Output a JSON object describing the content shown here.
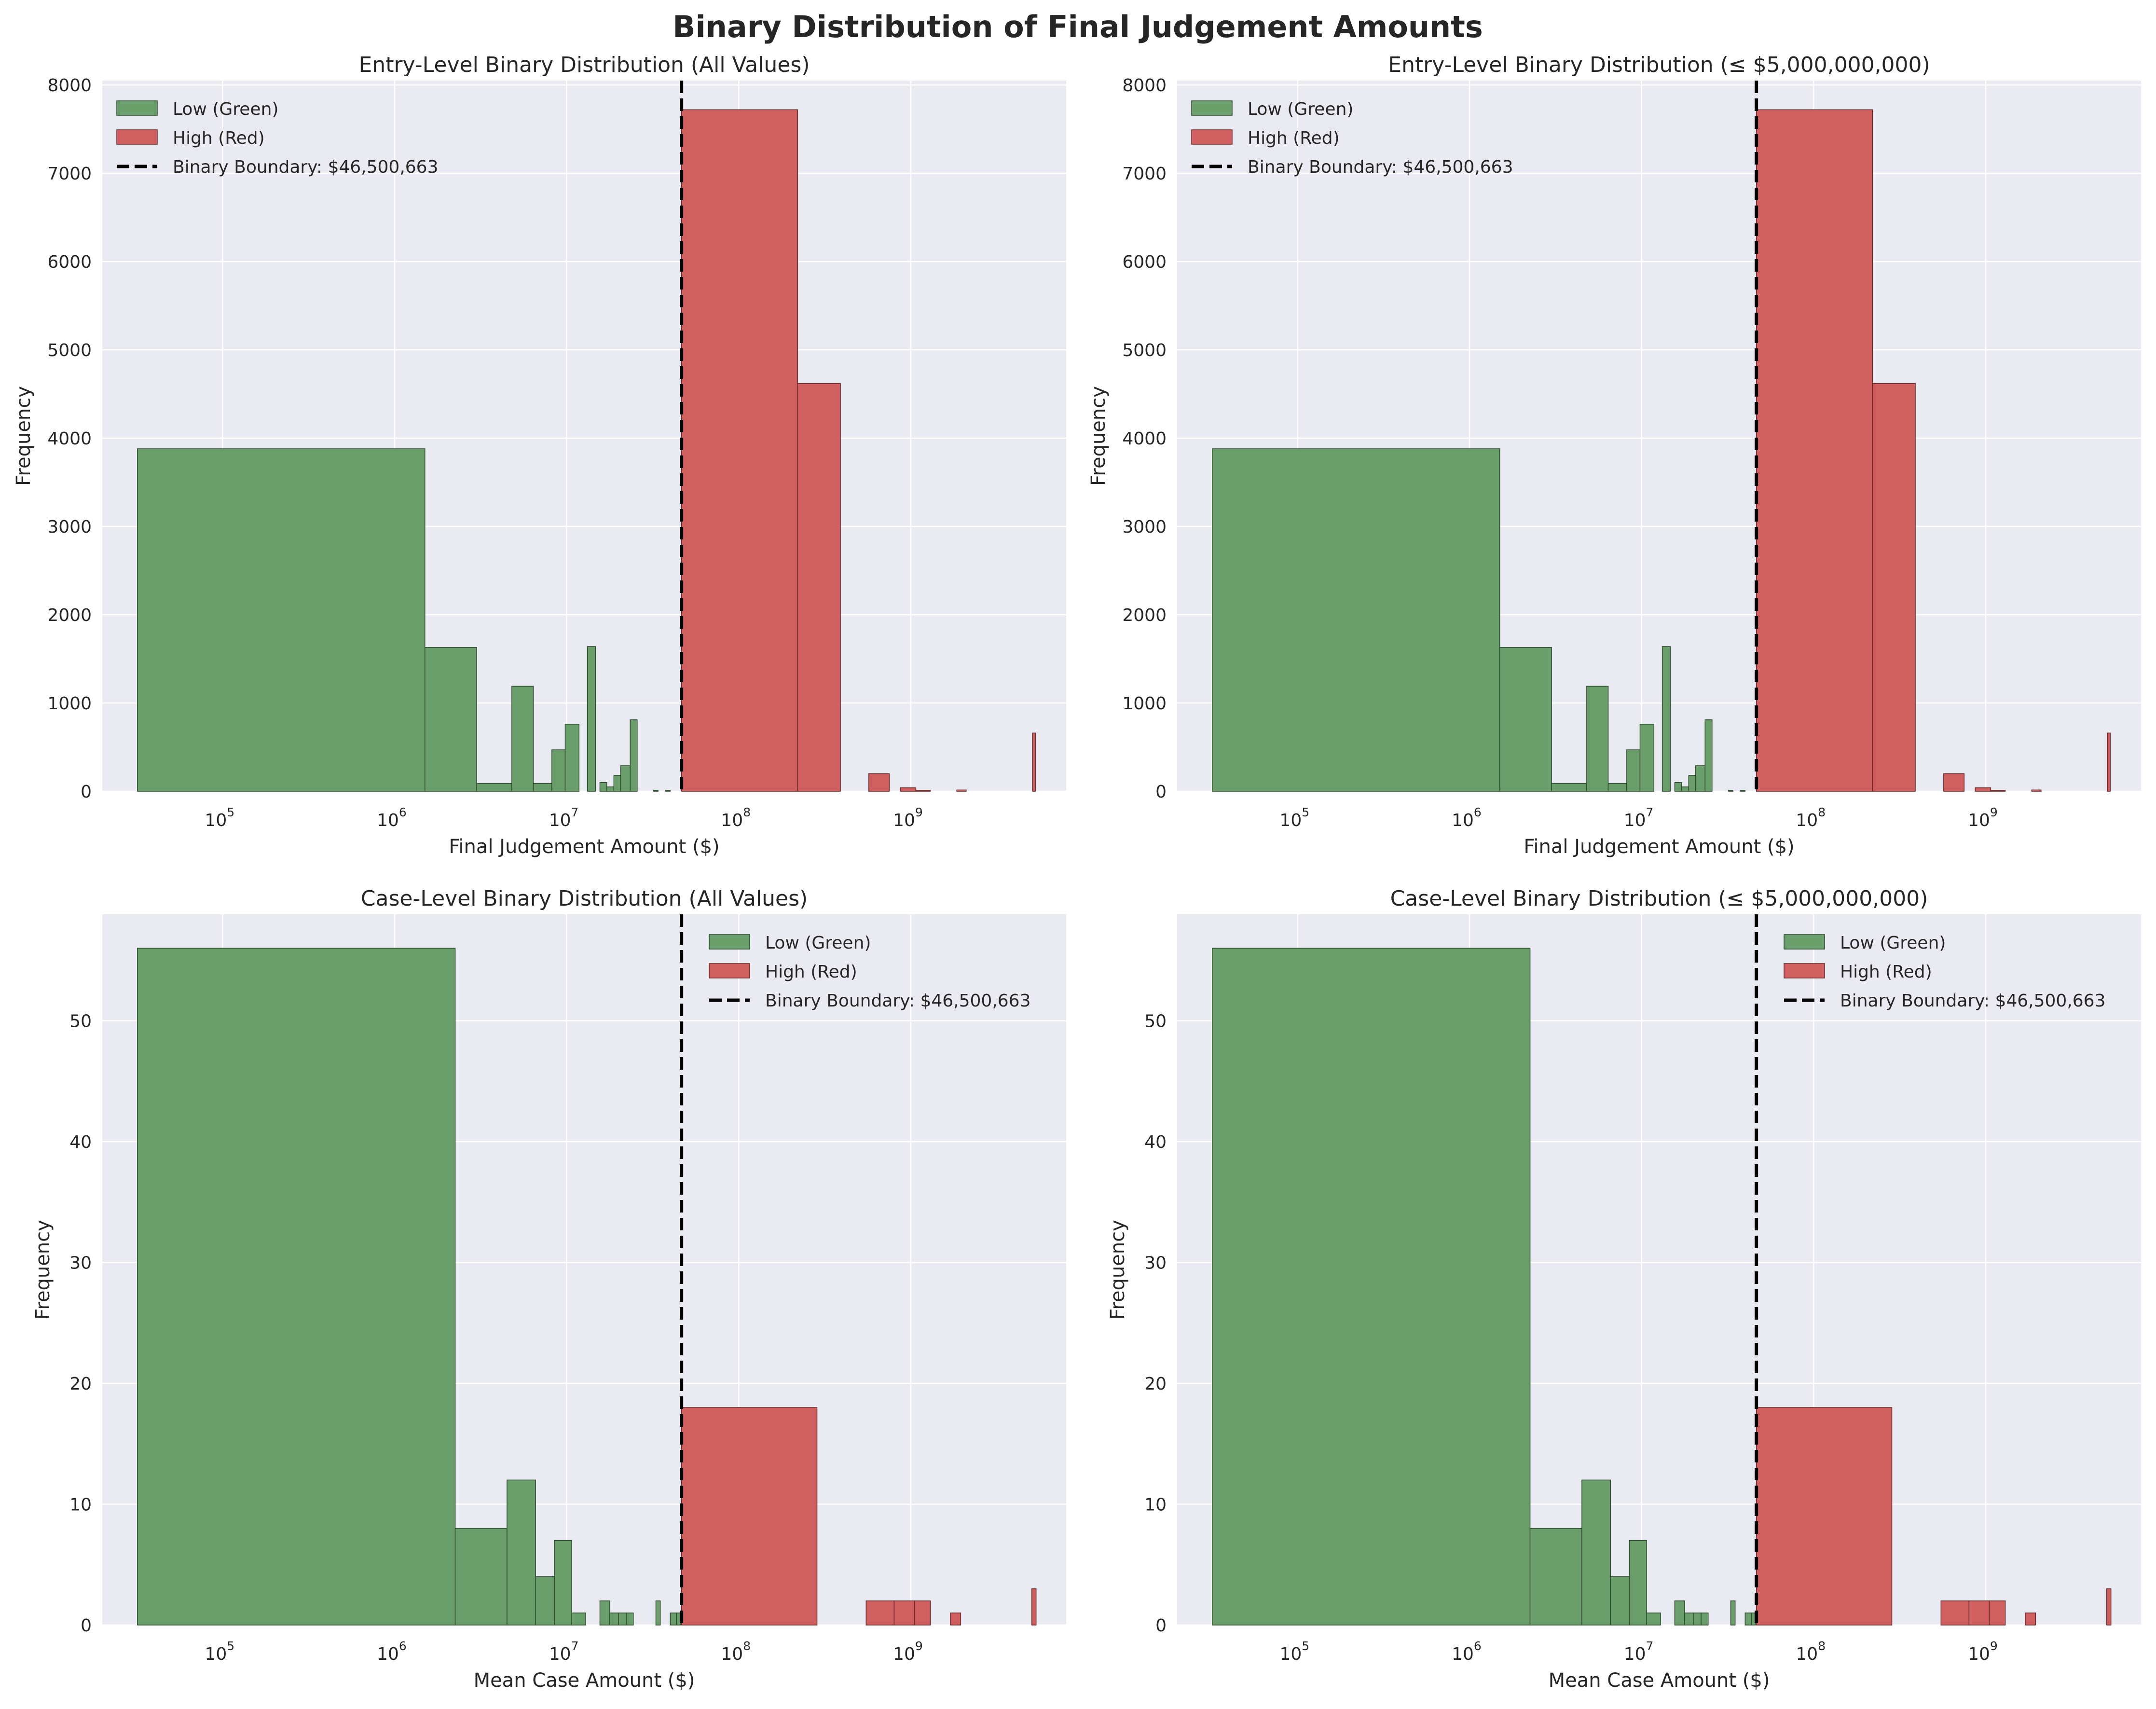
{
  "figure_title": "Binary Distribution of Final Judgement Amounts",
  "colors": {
    "low": "#6a9e6a",
    "low_edge": "#2f4a2f",
    "high": "#d06060",
    "high_edge": "#6a2a2a",
    "boundary": "#000000",
    "plot_bg": "#eaeaf2",
    "grid": "#ffffff"
  },
  "chart_data": [
    {
      "type": "bar",
      "title": "Entry-Level Binary Distribution (All Values)",
      "xlabel": "Final Judgement Amount ($)",
      "ylabel": "Frequency",
      "xscale": "log",
      "xlim": [
        20000,
        8000000000
      ],
      "ylim": [
        0,
        8050
      ],
      "yticks": [
        0,
        1000,
        2000,
        3000,
        4000,
        5000,
        6000,
        7000,
        8000
      ],
      "xticks": [
        {
          "value": 100000,
          "base": "10",
          "exp": "5"
        },
        {
          "value": 1000000,
          "base": "10",
          "exp": "6"
        },
        {
          "value": 10000000,
          "base": "10",
          "exp": "7"
        },
        {
          "value": 100000000,
          "base": "10",
          "exp": "8"
        },
        {
          "value": 1000000000,
          "base": "10",
          "exp": "9"
        }
      ],
      "legend_position": "upper left",
      "legend": [
        {
          "kind": "patch",
          "series": "low",
          "label": "Low (Green)"
        },
        {
          "kind": "patch",
          "series": "high",
          "label": "High (Red)"
        },
        {
          "kind": "dash",
          "label": "Binary Boundary: $46,500,663"
        }
      ],
      "boundary": 46500663,
      "series": [
        {
          "name": "Low (Green)",
          "key": "low",
          "bins": [
            [
              32000,
              1500000,
              3880
            ],
            [
              1500000,
              3000000,
              1630
            ],
            [
              3000000,
              4800000,
              90
            ],
            [
              4800000,
              6400000,
              1190
            ],
            [
              6400000,
              8200000,
              90
            ],
            [
              8200000,
              9800000,
              470
            ],
            [
              9800000,
              11800000,
              760
            ],
            [
              11800000,
              13200000,
              0
            ],
            [
              13200000,
              14700000,
              1640
            ],
            [
              15600000,
              17100000,
              100
            ],
            [
              17100000,
              18800000,
              50
            ],
            [
              18800000,
              20600000,
              180
            ],
            [
              20600000,
              23400000,
              290
            ],
            [
              23400000,
              25700000,
              810
            ],
            [
              32000000,
              34000000,
              10
            ],
            [
              37500000,
              40000000,
              10
            ]
          ]
        },
        {
          "name": "High (Red)",
          "key": "high",
          "bins": [
            [
              46500663,
              220000000,
              7720
            ],
            [
              220000000,
              390000000,
              4620
            ],
            [
              570000000,
              750000000,
              200
            ],
            [
              870000000,
              1070000000,
              40
            ],
            [
              1070000000,
              1300000000,
              10
            ],
            [
              1850000000,
              2100000000,
              15
            ],
            [
              5100000000,
              5300000000,
              660
            ]
          ]
        }
      ]
    },
    {
      "type": "bar",
      "title": "Entry-Level Binary Distribution (≤ $5,000,000,000)",
      "xlabel": "Final Judgement Amount ($)",
      "ylabel": "Frequency",
      "xscale": "log",
      "xlim": [
        20000,
        8000000000
      ],
      "ylim": [
        0,
        8050
      ],
      "yticks": [
        0,
        1000,
        2000,
        3000,
        4000,
        5000,
        6000,
        7000,
        8000
      ],
      "xticks": [
        {
          "value": 100000,
          "base": "10",
          "exp": "5"
        },
        {
          "value": 1000000,
          "base": "10",
          "exp": "6"
        },
        {
          "value": 10000000,
          "base": "10",
          "exp": "7"
        },
        {
          "value": 100000000,
          "base": "10",
          "exp": "8"
        },
        {
          "value": 1000000000,
          "base": "10",
          "exp": "9"
        }
      ],
      "legend_position": "upper left",
      "legend": [
        {
          "kind": "patch",
          "series": "low",
          "label": "Low (Green)"
        },
        {
          "kind": "patch",
          "series": "high",
          "label": "High (Red)"
        },
        {
          "kind": "dash",
          "label": "Binary Boundary: $46,500,663"
        }
      ],
      "boundary": 46500663,
      "series": [
        {
          "name": "Low (Green)",
          "key": "low",
          "bins": [
            [
              32000,
              1500000,
              3880
            ],
            [
              1500000,
              3000000,
              1630
            ],
            [
              3000000,
              4800000,
              90
            ],
            [
              4800000,
              6400000,
              1190
            ],
            [
              6400000,
              8200000,
              90
            ],
            [
              8200000,
              9800000,
              470
            ],
            [
              9800000,
              11800000,
              760
            ],
            [
              11800000,
              13200000,
              0
            ],
            [
              13200000,
              14700000,
              1640
            ],
            [
              15600000,
              17100000,
              100
            ],
            [
              17100000,
              18800000,
              50
            ],
            [
              18800000,
              20600000,
              180
            ],
            [
              20600000,
              23400000,
              290
            ],
            [
              23400000,
              25700000,
              810
            ],
            [
              32000000,
              34000000,
              10
            ],
            [
              37500000,
              40000000,
              10
            ]
          ]
        },
        {
          "name": "High (Red)",
          "key": "high",
          "bins": [
            [
              46500663,
              220000000,
              7720
            ],
            [
              220000000,
              390000000,
              4620
            ],
            [
              570000000,
              750000000,
              200
            ],
            [
              870000000,
              1070000000,
              40
            ],
            [
              1070000000,
              1300000000,
              10
            ],
            [
              1850000000,
              2100000000,
              15
            ],
            [
              5100000000,
              5300000000,
              660
            ]
          ]
        }
      ]
    },
    {
      "type": "bar",
      "title": "Case-Level Binary Distribution (All Values)",
      "xlabel": "Mean Case Amount ($)",
      "ylabel": "Frequency",
      "xscale": "log",
      "xlim": [
        20000,
        8000000000
      ],
      "ylim": [
        0,
        58.8
      ],
      "yticks": [
        0,
        10,
        20,
        30,
        40,
        50
      ],
      "xticks": [
        {
          "value": 100000,
          "base": "10",
          "exp": "5"
        },
        {
          "value": 1000000,
          "base": "10",
          "exp": "6"
        },
        {
          "value": 10000000,
          "base": "10",
          "exp": "7"
        },
        {
          "value": 100000000,
          "base": "10",
          "exp": "8"
        },
        {
          "value": 1000000000,
          "base": "10",
          "exp": "9"
        }
      ],
      "legend_position": "upper right",
      "legend": [
        {
          "kind": "patch",
          "series": "low",
          "label": "Low (Green)"
        },
        {
          "kind": "patch",
          "series": "high",
          "label": "High (Red)"
        },
        {
          "kind": "dash",
          "label": "Binary Boundary: $46,500,663"
        }
      ],
      "boundary": 46500663,
      "series": [
        {
          "name": "Low (Green)",
          "key": "low",
          "bins": [
            [
              32000,
              2250000,
              56
            ],
            [
              2250000,
              4500000,
              8
            ],
            [
              4500000,
              6600000,
              12
            ],
            [
              6600000,
              8500000,
              4
            ],
            [
              8500000,
              10700000,
              7
            ],
            [
              10700000,
              12900000,
              1
            ],
            [
              15600000,
              17800000,
              2
            ],
            [
              17800000,
              20000000,
              1
            ],
            [
              20000000,
              22200000,
              1
            ],
            [
              22200000,
              24400000,
              1
            ],
            [
              33000000,
              35000000,
              2
            ],
            [
              40000000,
              43500000,
              1
            ],
            [
              43500000,
              46000000,
              1
            ]
          ]
        },
        {
          "name": "High (Red)",
          "key": "high",
          "bins": [
            [
              46500663,
              285000000,
              18
            ],
            [
              550000000,
              800000000,
              2
            ],
            [
              800000000,
              1050000000,
              2
            ],
            [
              1050000000,
              1300000000,
              2
            ],
            [
              1700000000,
              1950000000,
              1
            ],
            [
              5050000000,
              5350000000,
              3
            ]
          ]
        }
      ]
    },
    {
      "type": "bar",
      "title": "Case-Level Binary Distribution (≤ $5,000,000,000)",
      "xlabel": "Mean Case Amount ($)",
      "ylabel": "Frequency",
      "xscale": "log",
      "xlim": [
        20000,
        8000000000
      ],
      "ylim": [
        0,
        58.8
      ],
      "yticks": [
        0,
        10,
        20,
        30,
        40,
        50
      ],
      "xticks": [
        {
          "value": 100000,
          "base": "10",
          "exp": "5"
        },
        {
          "value": 1000000,
          "base": "10",
          "exp": "6"
        },
        {
          "value": 10000000,
          "base": "10",
          "exp": "7"
        },
        {
          "value": 100000000,
          "base": "10",
          "exp": "8"
        },
        {
          "value": 1000000000,
          "base": "10",
          "exp": "9"
        }
      ],
      "legend_position": "upper right",
      "legend": [
        {
          "kind": "patch",
          "series": "low",
          "label": "Low (Green)"
        },
        {
          "kind": "patch",
          "series": "high",
          "label": "High (Red)"
        },
        {
          "kind": "dash",
          "label": "Binary Boundary: $46,500,663"
        }
      ],
      "boundary": 46500663,
      "series": [
        {
          "name": "Low (Green)",
          "key": "low",
          "bins": [
            [
              32000,
              2250000,
              56
            ],
            [
              2250000,
              4500000,
              8
            ],
            [
              4500000,
              6600000,
              12
            ],
            [
              6600000,
              8500000,
              4
            ],
            [
              8500000,
              10700000,
              7
            ],
            [
              10700000,
              12900000,
              1
            ],
            [
              15600000,
              17800000,
              2
            ],
            [
              17800000,
              20000000,
              1
            ],
            [
              20000000,
              22200000,
              1
            ],
            [
              22200000,
              24400000,
              1
            ],
            [
              33000000,
              35000000,
              2
            ],
            [
              40000000,
              43500000,
              1
            ],
            [
              43500000,
              46000000,
              1
            ]
          ]
        },
        {
          "name": "High (Red)",
          "key": "high",
          "bins": [
            [
              46500663,
              285000000,
              18
            ],
            [
              550000000,
              800000000,
              2
            ],
            [
              800000000,
              1050000000,
              2
            ],
            [
              1050000000,
              1300000000,
              2
            ],
            [
              1700000000,
              1950000000,
              1
            ],
            [
              5050000000,
              5350000000,
              3
            ]
          ]
        }
      ]
    }
  ]
}
